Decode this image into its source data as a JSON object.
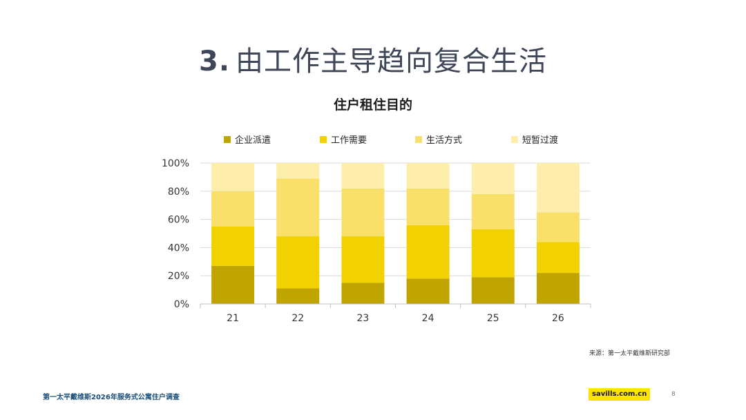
{
  "header": {
    "number": "3.",
    "title": "由工作主导趋向复合生活"
  },
  "chart_data": {
    "type": "bar",
    "stacked": true,
    "title": "住户租住目的",
    "categories": [
      "21",
      "22",
      "23",
      "24",
      "25",
      "26"
    ],
    "ylim": [
      0,
      100
    ],
    "yticks": [
      "0%",
      "20%",
      "40%",
      "60%",
      "80%",
      "100%"
    ],
    "legend_position": "top",
    "grid": true,
    "series": [
      {
        "name": "企业派遣",
        "color": "#c0a400",
        "values": [
          27,
          11,
          15,
          18,
          19,
          22
        ]
      },
      {
        "name": "工作需要",
        "color": "#f2d100",
        "values": [
          28,
          37,
          33,
          38,
          34,
          22
        ]
      },
      {
        "name": "生活方式",
        "color": "#f9e06a",
        "values": [
          25,
          41,
          34,
          26,
          25,
          21
        ]
      },
      {
        "name": "短暂过渡",
        "color": "#fdeeac",
        "values": [
          20,
          11,
          18,
          18,
          22,
          35
        ]
      }
    ]
  },
  "source": "来源：第一太平戴维斯研究部",
  "footer": {
    "left": "第一太平戴维斯2026年服务式公寓住户调查",
    "brand": "savills.com.cn",
    "page": "8"
  }
}
